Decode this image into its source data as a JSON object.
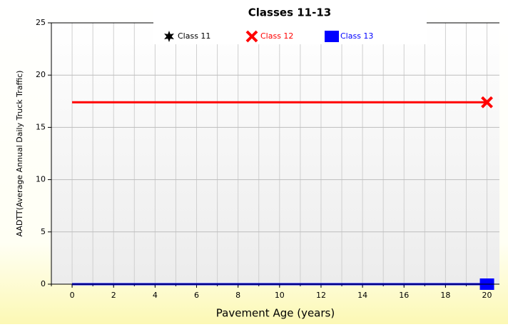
{
  "chart_data": {
    "type": "line",
    "title": "Classes 11-13",
    "x_label": "Pavement Age (years)",
    "y_label": "AADTT(Average Annual Daily Truck Traffic)",
    "x": [
      0,
      20
    ],
    "series": [
      {
        "name": "Class 11",
        "color": "#000000",
        "marker": "star",
        "values": [
          0,
          0
        ]
      },
      {
        "name": "Class 12",
        "color": "#ff0000",
        "marker": "x",
        "values": [
          17.4,
          17.4
        ]
      },
      {
        "name": "Class 13",
        "color": "#0000ff",
        "marker": "square",
        "values": [
          0,
          0
        ]
      }
    ],
    "xlim": [
      -1,
      20.6
    ],
    "xticks": [
      0,
      2,
      4,
      6,
      8,
      10,
      12,
      14,
      16,
      18,
      20
    ],
    "ylim": [
      0,
      25
    ],
    "yticks": [
      0,
      5,
      10,
      15,
      20,
      25
    ],
    "grid": true,
    "x_grid_step": 1,
    "legend": "top"
  }
}
